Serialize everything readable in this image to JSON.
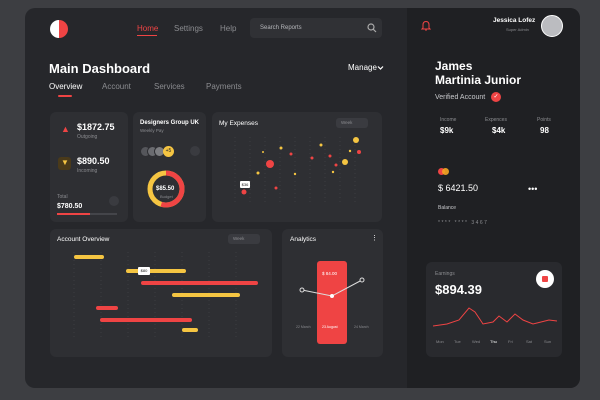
{
  "colors": {
    "accent": "#ef4444",
    "yellow": "#f5c542",
    "bg": "#26272b",
    "card": "#2e2f33"
  },
  "nav": {
    "items": [
      "Home",
      "Settings",
      "Help"
    ],
    "search_placeholder": "Search Reports"
  },
  "user": {
    "name": "Jessica Lofez",
    "role": "Super Admin"
  },
  "header": {
    "title": "Main Dashboard",
    "manage": "Manage"
  },
  "tabs": [
    "Overview",
    "Account",
    "Services",
    "Payments"
  ],
  "summary": {
    "amount1": "$1872.75",
    "label1": "Outgoing",
    "amount2": "$890.50",
    "label2": "Incoming",
    "total_label": "Total",
    "total": "$780.50"
  },
  "group": {
    "title": "Designers Group UK",
    "subtitle": "Weekly Pay",
    "badge": "+5",
    "donut_value": "$85.50",
    "donut_label": "Budget"
  },
  "expenses": {
    "title": "My Expenses",
    "filter": "Week",
    "tag": "$36"
  },
  "account_overview": {
    "title": "Account Overview",
    "filter": "Week",
    "tag": "$80"
  },
  "analytics": {
    "title": "Analytics",
    "bar_value": "$ 84.00",
    "labels": [
      "22 March",
      "23 August",
      "24 March"
    ]
  },
  "profile": {
    "first": "James",
    "last": "Martinia Junior",
    "verified": "Verified Account"
  },
  "stats": [
    {
      "label": "Income",
      "value": "$9k"
    },
    {
      "label": "Expences",
      "value": "$4k"
    },
    {
      "label": "Points",
      "value": "98"
    }
  ],
  "card": {
    "balance_value": "$ 6421.50",
    "balance_label": "Balance",
    "number_masked": "**** **** 3467",
    "more": "•••"
  },
  "earnings": {
    "label": "Earnings",
    "value": "$894.39",
    "days": [
      "Mon",
      "Tue",
      "Wed",
      "Thu",
      "Fri",
      "Sat",
      "Sun"
    ],
    "active_day": "Thu"
  }
}
